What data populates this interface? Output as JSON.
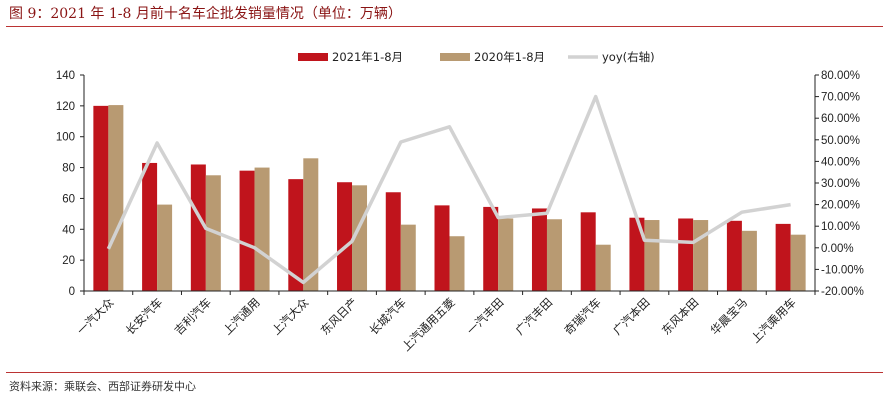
{
  "title": "图 9：2021 年 1-8 月前十名车企批发销量情况（单位：万辆）",
  "source": "资料来源：乘联会、西部证券研发中心",
  "chart_data": {
    "type": "bar",
    "categories": [
      "一汽大众",
      "长安汽车",
      "吉利汽车",
      "上汽通用",
      "上汽大众",
      "东风日产",
      "长城汽车",
      "上汽通用五菱",
      "一汽丰田",
      "广汽丰田",
      "奇瑞汽车",
      "广汽本田",
      "东风本田",
      "华晨宝马",
      "上汽乘用车"
    ],
    "series": [
      {
        "name": "2021年1-8月",
        "axis": "left",
        "color": "#c0141c",
        "values": [
          120,
          83,
          82,
          78,
          72.5,
          70.5,
          64,
          55.5,
          54.5,
          53.5,
          51,
          47.5,
          47,
          45.5,
          43.5
        ]
      },
      {
        "name": "2020年1-8月",
        "axis": "left",
        "color": "#b89a72",
        "values": [
          120.5,
          56,
          75,
          80,
          86,
          68.5,
          43,
          35.5,
          47,
          46.5,
          30,
          46,
          46,
          39,
          36.5
        ]
      },
      {
        "name": "yoy(右轴)",
        "axis": "right",
        "type": "line",
        "color": "#d2d2d2",
        "values": [
          -0.005,
          0.485,
          0.09,
          0.0,
          -0.16,
          0.03,
          0.49,
          0.56,
          0.14,
          0.16,
          0.7,
          0.035,
          0.025,
          0.165,
          0.2
        ]
      }
    ],
    "ylim": [
      0,
      140
    ],
    "yticks": [
      0,
      20,
      40,
      60,
      80,
      100,
      120,
      140
    ],
    "y2lim": [
      -0.2,
      0.8
    ],
    "y2ticks": [
      "-20.00%",
      "-10.00%",
      "0.00%",
      "10.00%",
      "20.00%",
      "30.00%",
      "40.00%",
      "50.00%",
      "60.00%",
      "70.00%",
      "80.00%"
    ],
    "legend": "top-center",
    "grid": false
  }
}
